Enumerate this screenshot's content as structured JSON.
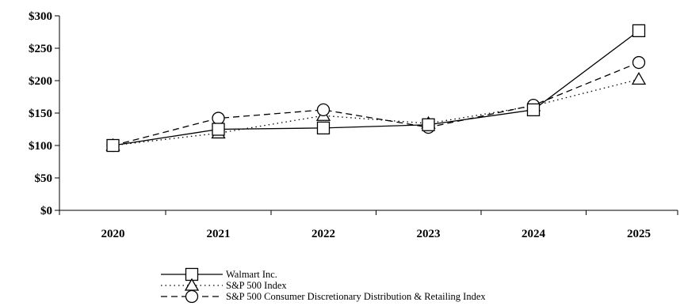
{
  "chart_data": {
    "type": "line",
    "title": "",
    "xlabel": "",
    "ylabel": "",
    "categories": [
      "2020",
      "2021",
      "2022",
      "2023",
      "2024",
      "2025"
    ],
    "y_ticks": [
      "$0",
      "$50",
      "$100",
      "$150",
      "$200",
      "$250",
      "$300"
    ],
    "ylim": [
      0,
      300
    ],
    "grid": false,
    "legend_position": "bottom-left",
    "series": [
      {
        "name": "Walmart Inc.",
        "marker": "square",
        "line_style": "solid",
        "values": [
          100,
          125,
          127,
          132,
          155,
          277
        ]
      },
      {
        "name": "S&P 500 Index",
        "marker": "triangle",
        "line_style": "dotted",
        "values": [
          100,
          119,
          146,
          134,
          161,
          202
        ]
      },
      {
        "name": "S&P 500 Consumer Discretionary Distribution & Retailing Index",
        "marker": "circle",
        "line_style": "dashed",
        "values": [
          100,
          142,
          155,
          128,
          162,
          228
        ]
      }
    ]
  }
}
